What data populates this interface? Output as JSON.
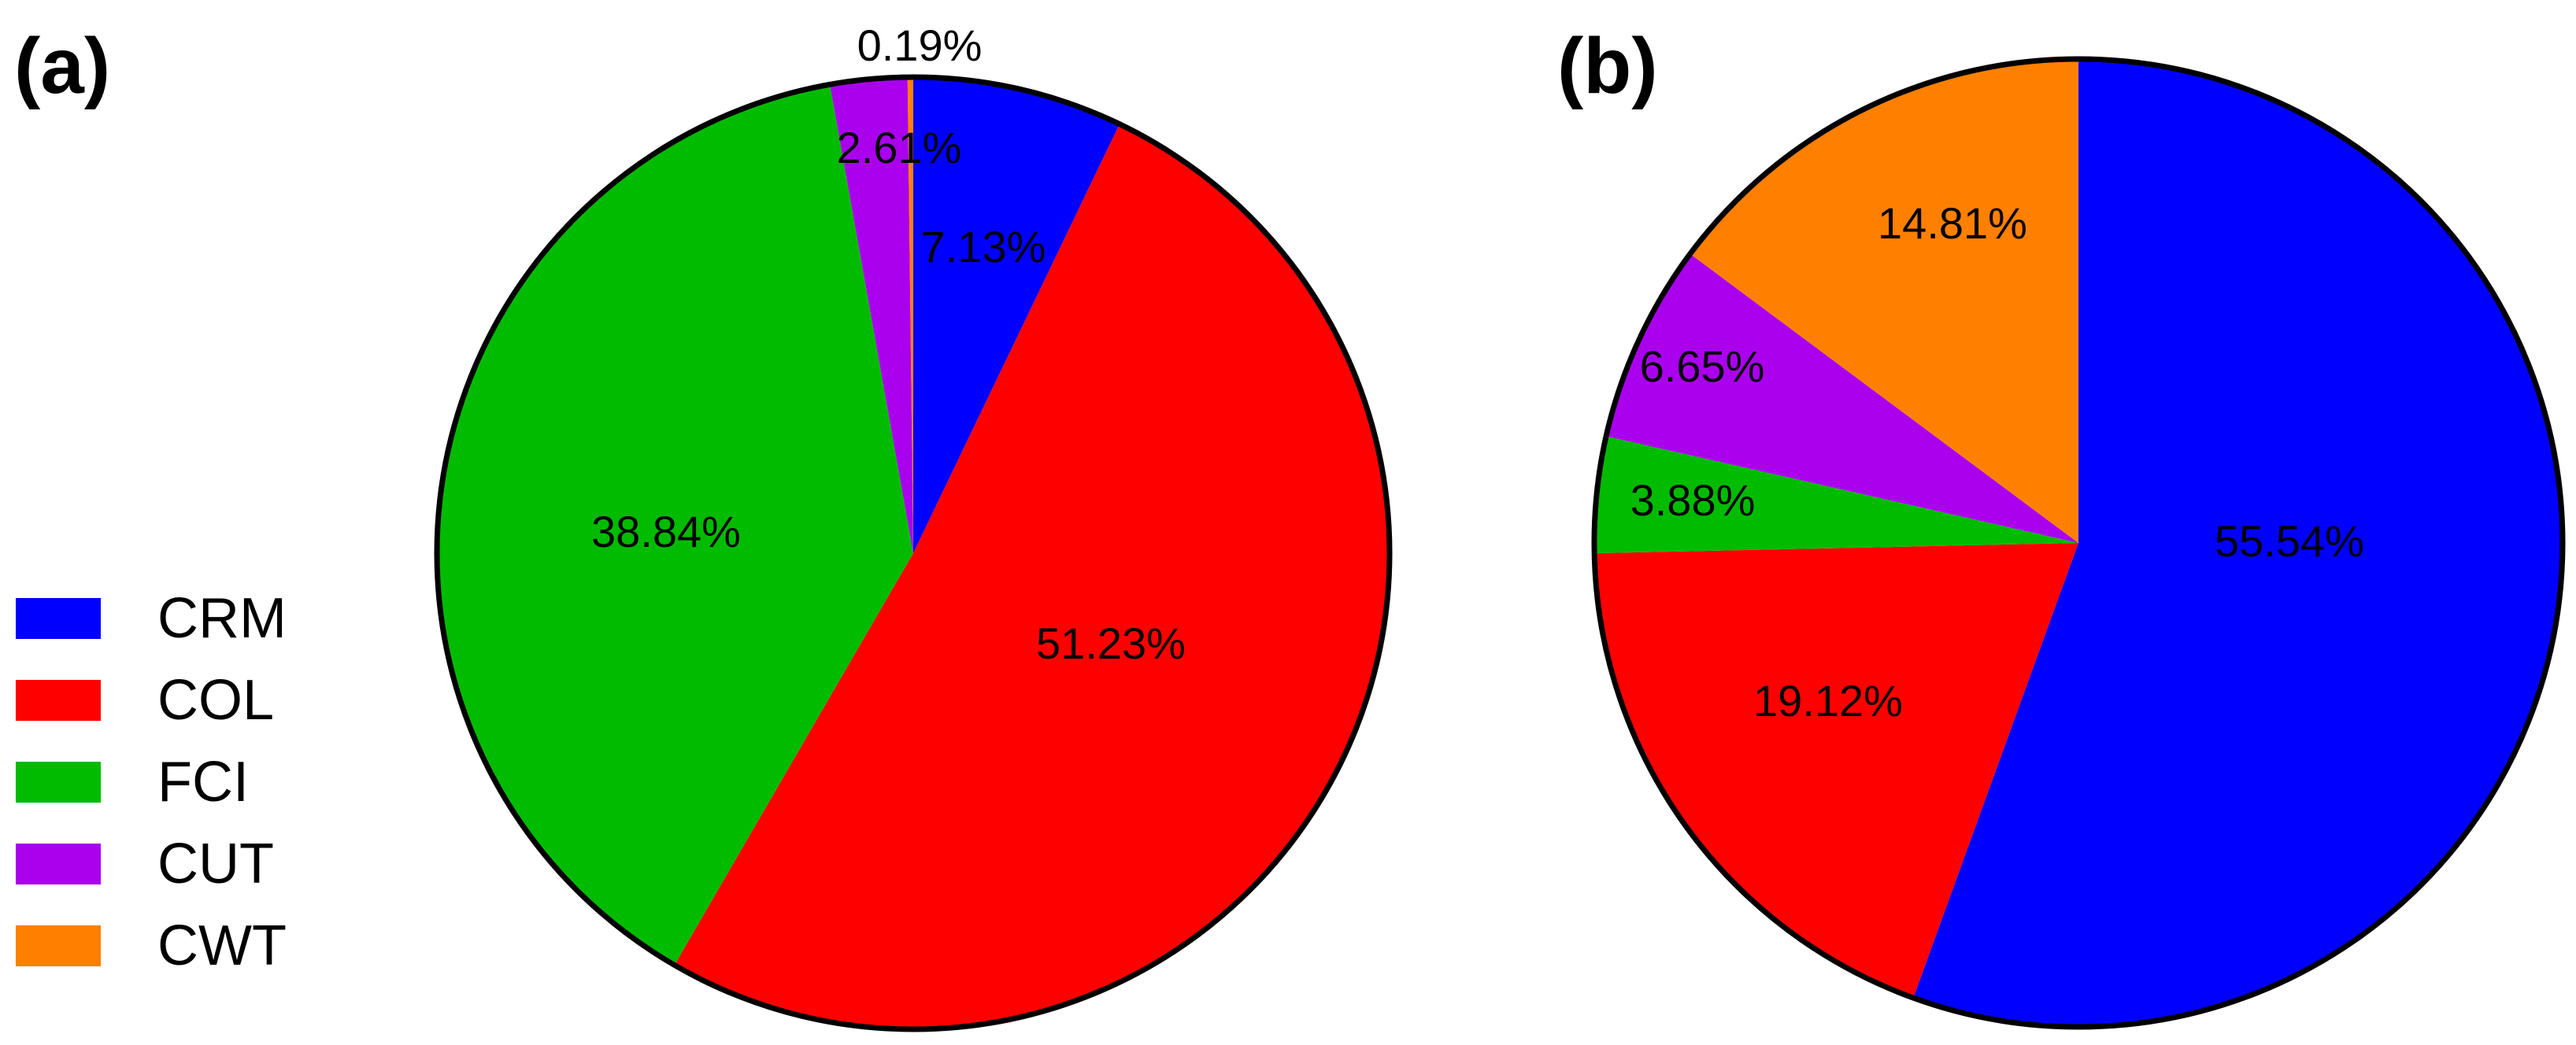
{
  "chart_data": [
    {
      "type": "pie",
      "panel_label": "(a)",
      "slices": [
        {
          "category": "CRM",
          "value": 7.13,
          "label": "7.13%",
          "color": "#0000FF"
        },
        {
          "category": "COL",
          "value": 51.23,
          "label": "51.23%",
          "color": "#FF0000"
        },
        {
          "category": "FCI",
          "value": 38.84,
          "label": "38.84%",
          "color": "#00BB00"
        },
        {
          "category": "CUT",
          "value": 2.61,
          "label": "2.61%",
          "color": "#AA00EE"
        },
        {
          "category": "CWT",
          "value": 0.19,
          "label": "0.19%",
          "color": "#FF8000"
        }
      ]
    },
    {
      "type": "pie",
      "panel_label": "(b)",
      "slices": [
        {
          "category": "CRM",
          "value": 55.54,
          "label": "55.54%",
          "color": "#0000FF"
        },
        {
          "category": "COL",
          "value": 19.12,
          "label": "19.12%",
          "color": "#FF0000"
        },
        {
          "category": "FCI",
          "value": 3.88,
          "label": "3.88%",
          "color": "#00BB00"
        },
        {
          "category": "CUT",
          "value": 6.65,
          "label": "6.65%",
          "color": "#AA00EE"
        },
        {
          "category": "CWT",
          "value": 14.81,
          "label": "14.81%",
          "color": "#FF8000"
        }
      ]
    }
  ],
  "legend": {
    "placement": "bottom-left",
    "entries": [
      {
        "label": "CRM",
        "color": "#0000FF"
      },
      {
        "label": "COL",
        "color": "#FF0000"
      },
      {
        "label": "FCI",
        "color": "#00BB00"
      },
      {
        "label": "CUT",
        "color": "#AA00EE"
      },
      {
        "label": "CWT",
        "color": "#FF8000"
      }
    ]
  }
}
